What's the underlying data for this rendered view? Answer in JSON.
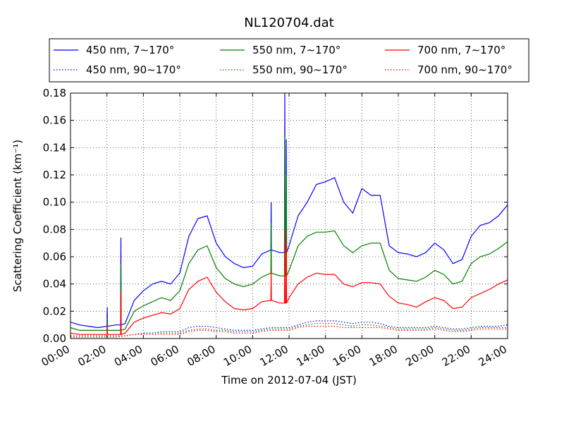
{
  "chart_data": {
    "type": "line",
    "title": "NL120704.dat",
    "xlabel": "Time on 2012-07-04 (JST)",
    "ylabel": "Scattering Coefficient (km⁻¹)",
    "ylim": [
      0,
      0.18
    ],
    "xlim": [
      "00:00",
      "24:00"
    ],
    "x_ticks": [
      "00:00",
      "02:00",
      "04:00",
      "06:00",
      "08:00",
      "10:00",
      "12:00",
      "14:00",
      "16:00",
      "18:00",
      "20:00",
      "22:00",
      "24:00"
    ],
    "y_ticks": [
      "0.00",
      "0.02",
      "0.04",
      "0.06",
      "0.08",
      "0.10",
      "0.12",
      "0.14",
      "0.16",
      "0.18"
    ],
    "grid": true,
    "legend_position": "top, above plot",
    "x": [
      "00:00",
      "00:30",
      "01:00",
      "01:30",
      "02:00",
      "02:30",
      "03:00",
      "03:30",
      "04:00",
      "04:30",
      "05:00",
      "05:30",
      "06:00",
      "06:30",
      "07:00",
      "07:30",
      "08:00",
      "08:30",
      "09:00",
      "09:30",
      "10:00",
      "10:30",
      "11:00",
      "11:30",
      "12:00",
      "12:30",
      "13:00",
      "13:30",
      "14:00",
      "14:30",
      "15:00",
      "15:30",
      "16:00",
      "16:30",
      "17:00",
      "17:30",
      "18:00",
      "18:30",
      "19:00",
      "19:30",
      "20:00",
      "20:30",
      "21:00",
      "21:30",
      "22:00",
      "22:30",
      "23:00",
      "23:30",
      "24:00"
    ],
    "series": [
      {
        "name": "450 nm, 7∼170°",
        "color": "#0000ff",
        "dash": "solid",
        "values": [
          0.012,
          0.01,
          0.009,
          0.008,
          0.009,
          0.01,
          0.011,
          0.028,
          0.035,
          0.04,
          0.042,
          0.04,
          0.048,
          0.075,
          0.088,
          0.09,
          0.07,
          0.06,
          0.055,
          0.052,
          0.053,
          0.062,
          0.065,
          0.063,
          0.068,
          0.09,
          0.1,
          0.113,
          0.115,
          0.118,
          0.1,
          0.092,
          0.11,
          0.105,
          0.105,
          0.068,
          0.063,
          0.062,
          0.06,
          0.063,
          0.07,
          0.065,
          0.055,
          0.058,
          0.075,
          0.083,
          0.085,
          0.09,
          0.098
        ]
      },
      {
        "name": "550 nm, 7∼170°",
        "color": "#008000",
        "dash": "solid",
        "values": [
          0.008,
          0.006,
          0.006,
          0.006,
          0.006,
          0.006,
          0.007,
          0.02,
          0.024,
          0.027,
          0.03,
          0.028,
          0.035,
          0.055,
          0.065,
          0.068,
          0.052,
          0.044,
          0.04,
          0.038,
          0.04,
          0.045,
          0.048,
          0.046,
          0.05,
          0.068,
          0.075,
          0.078,
          0.078,
          0.079,
          0.068,
          0.063,
          0.068,
          0.07,
          0.07,
          0.05,
          0.044,
          0.043,
          0.042,
          0.045,
          0.05,
          0.047,
          0.04,
          0.042,
          0.055,
          0.06,
          0.062,
          0.066,
          0.071
        ]
      },
      {
        "name": "700 nm, 7∼170°",
        "color": "#ff0000",
        "dash": "solid",
        "values": [
          0.004,
          0.003,
          0.003,
          0.003,
          0.003,
          0.003,
          0.004,
          0.012,
          0.015,
          0.017,
          0.019,
          0.018,
          0.022,
          0.036,
          0.042,
          0.045,
          0.034,
          0.027,
          0.022,
          0.021,
          0.022,
          0.027,
          0.028,
          0.026,
          0.03,
          0.04,
          0.045,
          0.048,
          0.047,
          0.047,
          0.04,
          0.038,
          0.041,
          0.041,
          0.04,
          0.031,
          0.026,
          0.025,
          0.023,
          0.027,
          0.03,
          0.028,
          0.022,
          0.023,
          0.03,
          0.033,
          0.036,
          0.04,
          0.043
        ]
      },
      {
        "name": "450 nm, 90∼170°",
        "color": "#0000ff",
        "dash": "dotted",
        "values": [
          0.002,
          0.002,
          0.002,
          0.002,
          0.002,
          0.002,
          0.002,
          0.003,
          0.004,
          0.004,
          0.005,
          0.005,
          0.005,
          0.008,
          0.009,
          0.009,
          0.008,
          0.007,
          0.006,
          0.006,
          0.006,
          0.007,
          0.008,
          0.008,
          0.008,
          0.01,
          0.012,
          0.013,
          0.013,
          0.013,
          0.012,
          0.011,
          0.012,
          0.012,
          0.011,
          0.009,
          0.008,
          0.008,
          0.008,
          0.008,
          0.009,
          0.008,
          0.007,
          0.007,
          0.008,
          0.009,
          0.009,
          0.009,
          0.01
        ]
      },
      {
        "name": "550 nm, 90∼170°",
        "color": "#008000",
        "dash": "dotted",
        "values": [
          0.002,
          0.002,
          0.002,
          0.002,
          0.002,
          0.002,
          0.002,
          0.003,
          0.004,
          0.004,
          0.004,
          0.004,
          0.004,
          0.006,
          0.007,
          0.007,
          0.006,
          0.006,
          0.005,
          0.005,
          0.005,
          0.006,
          0.007,
          0.007,
          0.007,
          0.009,
          0.01,
          0.011,
          0.011,
          0.011,
          0.01,
          0.009,
          0.01,
          0.01,
          0.009,
          0.008,
          0.007,
          0.007,
          0.007,
          0.007,
          0.008,
          0.007,
          0.006,
          0.006,
          0.007,
          0.008,
          0.008,
          0.008,
          0.008
        ]
      },
      {
        "name": "700 nm, 90∼170°",
        "color": "#ff0000",
        "dash": "dotted",
        "values": [
          0.001,
          0.001,
          0.001,
          0.001,
          0.001,
          0.001,
          0.002,
          0.003,
          0.003,
          0.003,
          0.003,
          0.003,
          0.003,
          0.005,
          0.006,
          0.006,
          0.005,
          0.005,
          0.004,
          0.004,
          0.004,
          0.005,
          0.006,
          0.006,
          0.006,
          0.008,
          0.009,
          0.009,
          0.009,
          0.009,
          0.008,
          0.008,
          0.008,
          0.008,
          0.008,
          0.007,
          0.006,
          0.006,
          0.006,
          0.006,
          0.007,
          0.006,
          0.005,
          0.005,
          0.006,
          0.007,
          0.007,
          0.007,
          0.007
        ]
      }
    ],
    "spikes": [
      {
        "x": "02:00",
        "series": [
          0.023,
          0.015,
          0.01
        ]
      },
      {
        "x": "02:45",
        "series": [
          0.074,
          0.055,
          0.035
        ]
      },
      {
        "x": "11:00",
        "series": [
          0.1,
          0.085,
          0.05
        ]
      },
      {
        "x": "11:45",
        "series": [
          0.18,
          0.148,
          0.08
        ]
      },
      {
        "x": "11:50",
        "series": [
          0.146,
          0.12,
          0.07
        ]
      }
    ]
  }
}
